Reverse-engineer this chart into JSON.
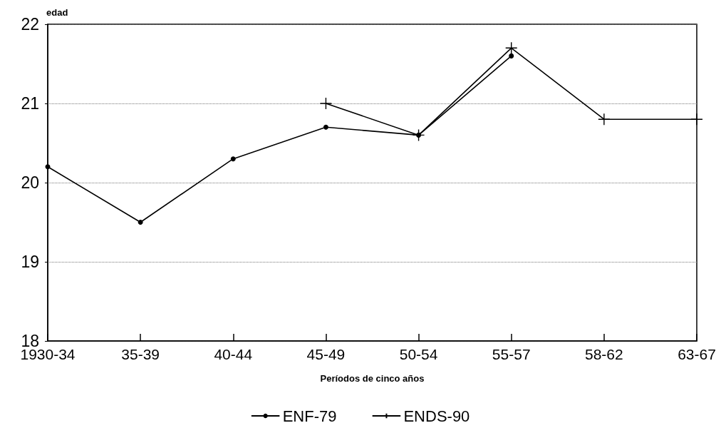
{
  "chart_data": {
    "type": "line",
    "ylabel": "edad",
    "xlabel": "Períodos de cinco años",
    "categories": [
      "1930-34",
      "35-39",
      "40-44",
      "45-49",
      "50-54",
      "55-57",
      "58-62",
      "63-67"
    ],
    "series": [
      {
        "name": "ENF-79",
        "color": "#000000",
        "marker": "circle",
        "values": [
          20.2,
          19.5,
          20.3,
          20.7,
          20.6,
          21.6,
          null,
          null
        ]
      },
      {
        "name": "ENDS-90",
        "color": "#000000",
        "marker": "cross",
        "values": [
          null,
          null,
          null,
          21.0,
          20.6,
          21.7,
          20.8,
          20.8
        ]
      }
    ],
    "ylim": [
      18,
      22
    ],
    "yticks": [
      18,
      19,
      20,
      21,
      22
    ],
    "grid": "y",
    "legend": "bottom",
    "line_style": "solid"
  }
}
